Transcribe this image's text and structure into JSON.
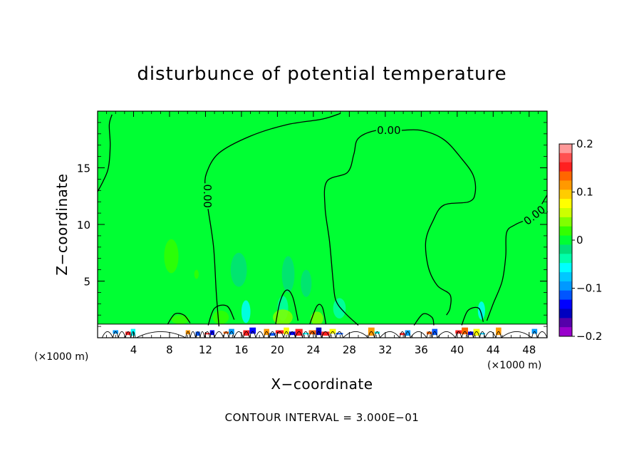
{
  "chart_data": {
    "type": "heatmap",
    "title": "disturbunce of potential temperature",
    "xlabel": "X−coordinate",
    "ylabel": "Z−coordinate",
    "x_unit_left": "(×1000 m)",
    "x_unit_right": "(×1000 m)",
    "footer": "CONTOUR INTERVAL = 3.000E−01",
    "xlim": [
      0,
      50
    ],
    "ylim": [
      0,
      20
    ],
    "x_ticks": [
      4,
      8,
      12,
      16,
      20,
      24,
      28,
      32,
      36,
      40,
      44,
      48
    ],
    "x_tick_labels": [
      "4",
      "8",
      "12",
      "16",
      "20",
      "24",
      "28",
      "32",
      "36",
      "40",
      "44",
      "48"
    ],
    "y_ticks": [
      5,
      10,
      15
    ],
    "y_tick_labels": [
      "5",
      "10",
      "15"
    ],
    "contour_label": "0.00",
    "colorbar": {
      "range": [
        -0.2,
        0.2
      ],
      "tick_values": [
        0.2,
        0.1,
        0,
        -0.1,
        -0.2
      ],
      "tick_labels": [
        "0.2",
        "0.1",
        "0",
        "−0.1",
        "−0.2"
      ],
      "colors": [
        "#ff9999",
        "#ff5050",
        "#ff2020",
        "#ff6600",
        "#ff9900",
        "#ffcc00",
        "#ffff00",
        "#ccff00",
        "#80ff00",
        "#33ff00",
        "#00ff33",
        "#00e07a",
        "#00ffaa",
        "#00ffff",
        "#00c8ff",
        "#0099ff",
        "#0055ff",
        "#0000ff",
        "#0000c0",
        "#5500aa",
        "#9900cc"
      ]
    },
    "background_color": "#00ff33",
    "near_zero_color": "#33ff00",
    "contours": [
      {
        "label": "0.00",
        "points": [
          [
            0,
            12.9
          ],
          [
            0.6,
            13.8
          ],
          [
            1.2,
            15
          ],
          [
            1.4,
            17
          ],
          [
            1.3,
            18.8
          ],
          [
            1.6,
            19.7
          ]
        ]
      },
      {
        "label": "0.00",
        "points": [
          [
            13.5,
            1
          ],
          [
            13.2,
            4
          ],
          [
            12.9,
            8
          ],
          [
            12.3,
            11.3
          ],
          [
            12,
            13
          ],
          [
            12.1,
            14.5
          ],
          [
            13.5,
            16.3
          ],
          [
            17,
            17.8
          ],
          [
            21,
            18.8
          ],
          [
            25,
            19.3
          ],
          [
            27,
            19.8
          ]
        ]
      },
      {
        "label": "0.00",
        "points": [
          [
            29,
            1.1
          ],
          [
            27.5,
            2.2
          ],
          [
            26.5,
            3.3
          ],
          [
            26.2,
            5
          ],
          [
            25.8,
            8.5
          ],
          [
            25.3,
            11.5
          ],
          [
            25.5,
            13.8
          ],
          [
            27.8,
            14.6
          ],
          [
            28.5,
            16.2
          ],
          [
            29,
            17.6
          ],
          [
            31,
            18.3
          ],
          [
            33.5,
            18.3
          ],
          [
            36,
            18.3
          ],
          [
            38.5,
            17.5
          ],
          [
            40.5,
            15.8
          ],
          [
            41.8,
            14.3
          ],
          [
            42,
            12.8
          ],
          [
            41.3,
            12
          ],
          [
            38.5,
            11.7
          ],
          [
            37.3,
            10.3
          ],
          [
            36.5,
            8.5
          ],
          [
            36.8,
            6.2
          ],
          [
            37.8,
            4.6
          ],
          [
            39.2,
            3.8
          ],
          [
            39.2,
            2.6
          ],
          [
            38.8,
            2
          ]
        ]
      },
      {
        "label": "0.00",
        "points": [
          [
            50,
            12.6
          ],
          [
            48.5,
            10.8
          ],
          [
            46.5,
            10
          ],
          [
            45.5,
            9.3
          ],
          [
            45.4,
            7.2
          ],
          [
            45,
            5
          ],
          [
            44,
            3
          ],
          [
            43.3,
            1.5
          ]
        ]
      },
      {
        "label": "",
        "points": [
          [
            7.8,
            1.2
          ],
          [
            8.6,
            2.1
          ],
          [
            9.6,
            2
          ],
          [
            10.3,
            1.3
          ]
        ]
      },
      {
        "label": "",
        "points": [
          [
            19.8,
            1.2
          ],
          [
            20.3,
            3.2
          ],
          [
            21,
            4.2
          ],
          [
            21.7,
            3.6
          ],
          [
            22.3,
            1.5
          ]
        ]
      },
      {
        "label": "",
        "points": [
          [
            23.6,
            1.2
          ],
          [
            24.4,
            2.8
          ],
          [
            25,
            2.7
          ],
          [
            25.4,
            1.2
          ]
        ]
      },
      {
        "label": "",
        "points": [
          [
            12.3,
            1.1
          ],
          [
            13,
            2.6
          ],
          [
            14.4,
            2.8
          ],
          [
            15.2,
            1.6
          ]
        ]
      },
      {
        "label": "",
        "points": [
          [
            35.2,
            1.1
          ],
          [
            36.2,
            2.1
          ],
          [
            37.2,
            1.8
          ],
          [
            37.4,
            1.1
          ]
        ]
      },
      {
        "label": "",
        "points": [
          [
            40.5,
            1.1
          ],
          [
            41.2,
            2.4
          ],
          [
            42.4,
            2.6
          ],
          [
            42.9,
            1.4
          ]
        ]
      }
    ],
    "blobs": [
      {
        "x": 8.2,
        "z": 7.2,
        "rx": 0.8,
        "rz": 1.5,
        "color": "#33ff00"
      },
      {
        "x": 11,
        "z": 5.6,
        "rx": 0.25,
        "rz": 0.4,
        "color": "#33ff00"
      },
      {
        "x": 15.7,
        "z": 6,
        "rx": 0.9,
        "rz": 1.5,
        "color": "#00e07a"
      },
      {
        "x": 21.2,
        "z": 5.6,
        "rx": 0.7,
        "rz": 1.6,
        "color": "#00e07a"
      },
      {
        "x": 23.2,
        "z": 4.8,
        "rx": 0.6,
        "rz": 1.2,
        "color": "#00e07a"
      },
      {
        "x": 16.5,
        "z": 2.3,
        "rx": 0.5,
        "rz": 1,
        "color": "#00ffff"
      },
      {
        "x": 20.6,
        "z": 2.6,
        "rx": 0.6,
        "rz": 1.1,
        "color": "#00ffaa"
      },
      {
        "x": 26.9,
        "z": 2.6,
        "rx": 0.7,
        "rz": 0.9,
        "color": "#00ffaa"
      },
      {
        "x": 42.7,
        "z": 2.4,
        "rx": 0.4,
        "rz": 0.8,
        "color": "#00ffff"
      },
      {
        "x": 9.2,
        "z": 1.6,
        "rx": 1,
        "rz": 0.4,
        "color": "#33ff00"
      },
      {
        "x": 20.6,
        "z": 1.8,
        "rx": 1.1,
        "rz": 0.7,
        "color": "#80ff00"
      },
      {
        "x": 24.4,
        "z": 1.7,
        "rx": 0.7,
        "rz": 0.6,
        "color": "#80ff00"
      },
      {
        "x": 13.7,
        "z": 1.8,
        "rx": 0.9,
        "rz": 0.6,
        "color": "#33ff00"
      }
    ],
    "surface_layer": {
      "z_top": 1.2
    },
    "surface_cells": [
      {
        "x": 0.5,
        "w": 1.2,
        "color": "#ffffff"
      },
      {
        "x": 1.7,
        "w": 0.6,
        "color": "#0099ff"
      },
      {
        "x": 2.3,
        "w": 0.8,
        "color": "#ffffff"
      },
      {
        "x": 3.1,
        "w": 0.6,
        "color": "#ff2020"
      },
      {
        "x": 3.7,
        "w": 0.5,
        "color": "#00ffff"
      },
      {
        "x": 4.3,
        "w": 5.5,
        "color": "#ffffff"
      },
      {
        "x": 9.8,
        "w": 0.5,
        "color": "#ff9900"
      },
      {
        "x": 10.3,
        "w": 0.6,
        "color": "#ffffff"
      },
      {
        "x": 10.9,
        "w": 0.5,
        "color": "#0055ff"
      },
      {
        "x": 11.4,
        "w": 0.5,
        "color": "#ffffff"
      },
      {
        "x": 11.9,
        "w": 0.6,
        "color": "#ff2020"
      },
      {
        "x": 12.5,
        "w": 0.5,
        "color": "#0000ff"
      },
      {
        "x": 13,
        "w": 1,
        "color": "#ffffff"
      },
      {
        "x": 14,
        "w": 0.6,
        "color": "#ff6600"
      },
      {
        "x": 14.6,
        "w": 0.6,
        "color": "#0099ff"
      },
      {
        "x": 15.2,
        "w": 1,
        "color": "#ffffff"
      },
      {
        "x": 16.2,
        "w": 0.7,
        "color": "#ff2020"
      },
      {
        "x": 16.9,
        "w": 0.7,
        "color": "#0000ff"
      },
      {
        "x": 17.6,
        "w": 0.9,
        "color": "#ffffff"
      },
      {
        "x": 18.5,
        "w": 0.6,
        "color": "#ff9900"
      },
      {
        "x": 19.1,
        "w": 0.7,
        "color": "#0055ff"
      },
      {
        "x": 19.8,
        "w": 0.9,
        "color": "#ff2020"
      },
      {
        "x": 20.7,
        "w": 0.6,
        "color": "#ffff00"
      },
      {
        "x": 21.3,
        "w": 0.7,
        "color": "#0000ff"
      },
      {
        "x": 22,
        "w": 0.8,
        "color": "#ff2020"
      },
      {
        "x": 22.8,
        "w": 0.7,
        "color": "#00ffff"
      },
      {
        "x": 23.5,
        "w": 0.8,
        "color": "#ff6600"
      },
      {
        "x": 24.3,
        "w": 0.6,
        "color": "#0000c0"
      },
      {
        "x": 24.9,
        "w": 0.9,
        "color": "#ff2020"
      },
      {
        "x": 25.8,
        "w": 0.7,
        "color": "#ffff00"
      },
      {
        "x": 26.5,
        "w": 0.8,
        "color": "#0055ff"
      },
      {
        "x": 27.3,
        "w": 2.8,
        "color": "#ffffff"
      },
      {
        "x": 30.1,
        "w": 0.7,
        "color": "#ff9900"
      },
      {
        "x": 30.8,
        "w": 0.6,
        "color": "#00ffff"
      },
      {
        "x": 31.4,
        "w": 2.2,
        "color": "#ffffff"
      },
      {
        "x": 33.6,
        "w": 0.6,
        "color": "#ff2020"
      },
      {
        "x": 34.2,
        "w": 0.6,
        "color": "#0099ff"
      },
      {
        "x": 34.8,
        "w": 1.8,
        "color": "#ffffff"
      },
      {
        "x": 36.6,
        "w": 0.6,
        "color": "#ff6600"
      },
      {
        "x": 37.2,
        "w": 0.6,
        "color": "#0055ff"
      },
      {
        "x": 37.8,
        "w": 2,
        "color": "#ffffff"
      },
      {
        "x": 39.8,
        "w": 0.7,
        "color": "#ff2020"
      },
      {
        "x": 40.5,
        "w": 0.7,
        "color": "#ff6600"
      },
      {
        "x": 41.2,
        "w": 0.6,
        "color": "#0000ff"
      },
      {
        "x": 41.8,
        "w": 0.7,
        "color": "#ffff00"
      },
      {
        "x": 42.5,
        "w": 0.6,
        "color": "#00c8ff"
      },
      {
        "x": 43.1,
        "w": 1.2,
        "color": "#ffffff"
      },
      {
        "x": 44.3,
        "w": 0.6,
        "color": "#ff9900"
      },
      {
        "x": 44.9,
        "w": 3.4,
        "color": "#ffffff"
      },
      {
        "x": 48.3,
        "w": 0.6,
        "color": "#0099ff"
      },
      {
        "x": 48.9,
        "w": 1.1,
        "color": "#ffffff"
      }
    ]
  }
}
